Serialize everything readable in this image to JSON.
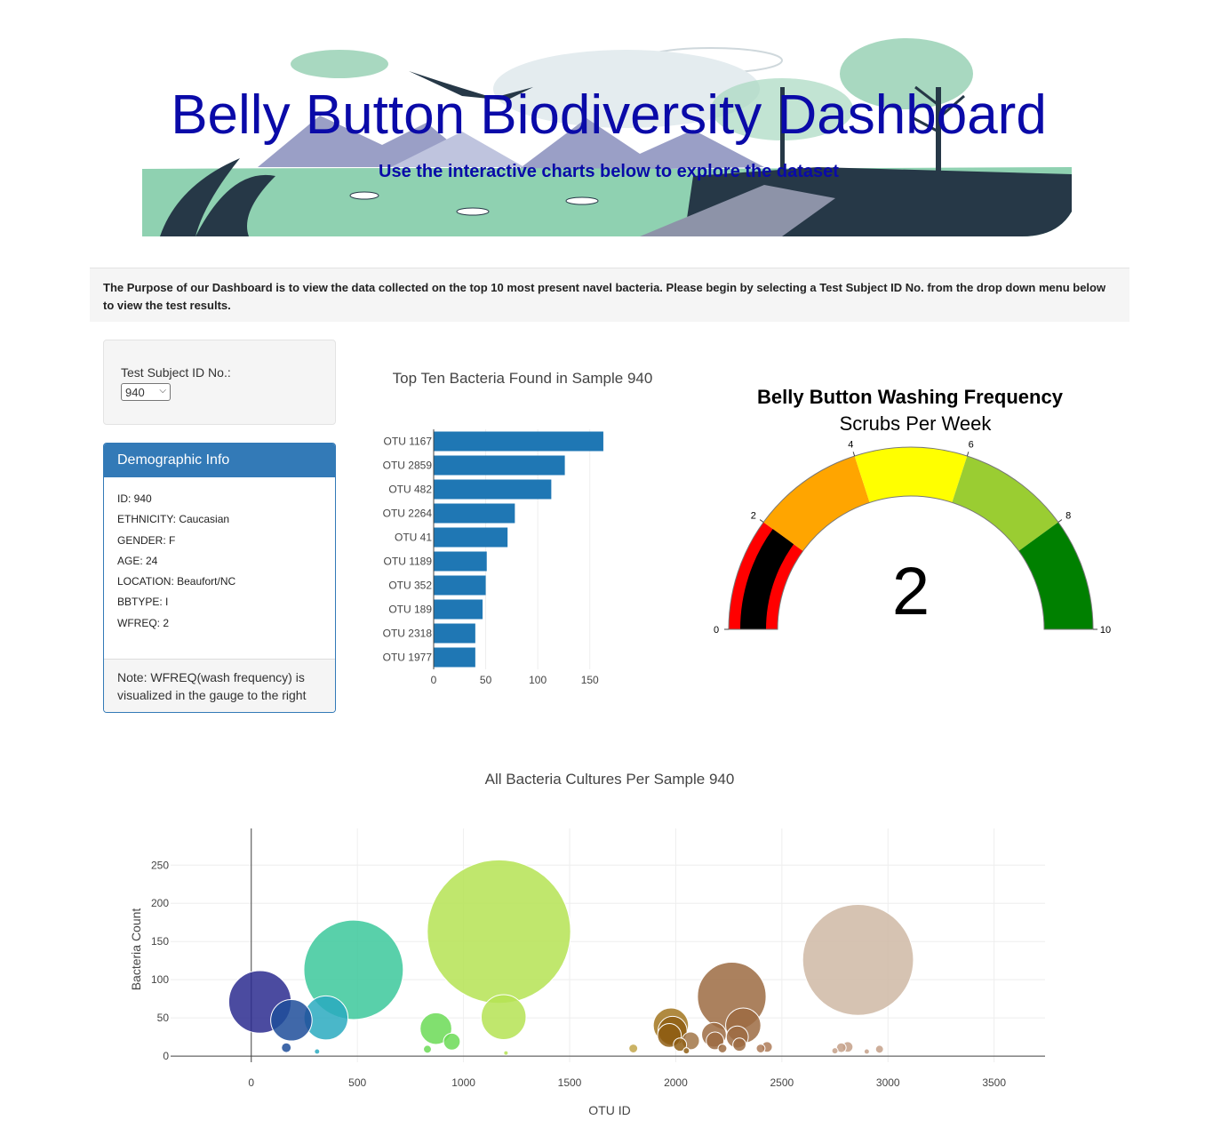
{
  "hero": {
    "title": "Belly Button Biodiversity Dashboard",
    "subtitle": "Use the interactive charts below to explore the dataset"
  },
  "purpose_text": "The Purpose of our Dashboard is to view the data collected on the top 10 most present navel bacteria. Please begin by selecting a Test Subject ID No. from the drop down menu below to view the test results.",
  "selector": {
    "label": "Test Subject ID No.:",
    "value": "940"
  },
  "demographics": {
    "heading": "Demographic Info",
    "rows": [
      "ID: 940",
      "ETHNICITY: Caucasian",
      "GENDER: F",
      "AGE: 24",
      "LOCATION: Beaufort/NC",
      "BBTYPE: I",
      "WFREQ: 2"
    ],
    "note": "Note: WFREQ(wash frequency) is visualized in the gauge to the right"
  },
  "chart_data": [
    {
      "type": "bar",
      "orientation": "horizontal",
      "title": "Top Ten Bacteria Found in Sample 940",
      "categories": [
        "OTU 1167",
        "OTU 2859",
        "OTU 482",
        "OTU 2264",
        "OTU 41",
        "OTU 1189",
        "OTU 352",
        "OTU 189",
        "OTU 2318",
        "OTU 1977"
      ],
      "values": [
        163,
        126,
        113,
        78,
        71,
        51,
        50,
        47,
        40,
        40
      ],
      "xlim": [
        0,
        175
      ],
      "xticks": [
        0,
        50,
        100,
        150
      ],
      "color": "#1f77b4"
    },
    {
      "type": "gauge",
      "title": "Belly Button Washing Frequency",
      "subtitle": "Scrubs Per Week",
      "value": 2,
      "range": [
        0,
        10
      ],
      "ticks": [
        0,
        2,
        4,
        6,
        8,
        10
      ],
      "bar_color": "#000000",
      "steps": [
        {
          "range": [
            0,
            2
          ],
          "color": "#ff0000"
        },
        {
          "range": [
            2,
            4
          ],
          "color": "#ffa500"
        },
        {
          "range": [
            4,
            6
          ],
          "color": "#ffff00"
        },
        {
          "range": [
            6,
            8
          ],
          "color": "#9acd32"
        },
        {
          "range": [
            8,
            10
          ],
          "color": "#008000"
        }
      ]
    },
    {
      "type": "scatter",
      "title": "All Bacteria Cultures Per Sample 940",
      "xlabel": "OTU ID",
      "ylabel": "Bacteria Count",
      "xlim": [
        -380,
        3740
      ],
      "ylim": [
        -8,
        298
      ],
      "xticks": [
        0,
        500,
        1000,
        1500,
        2000,
        2500,
        3000,
        3500
      ],
      "yticks": [
        0,
        50,
        100,
        150,
        200,
        250
      ],
      "grid": true,
      "points": [
        {
          "x": 41,
          "y": 71,
          "color": "#2c2b8f"
        },
        {
          "x": 189,
          "y": 47,
          "color": "#1f4e9a"
        },
        {
          "x": 165,
          "y": 11,
          "color": "#1f4e9a"
        },
        {
          "x": 352,
          "y": 50,
          "color": "#2aaabf"
        },
        {
          "x": 310,
          "y": 6,
          "color": "#2aaabf"
        },
        {
          "x": 482,
          "y": 113,
          "color": "#3cc89b"
        },
        {
          "x": 870,
          "y": 36,
          "color": "#6bdb56"
        },
        {
          "x": 945,
          "y": 19,
          "color": "#6bdb56"
        },
        {
          "x": 830,
          "y": 9,
          "color": "#6bdb56"
        },
        {
          "x": 1167,
          "y": 163,
          "color": "#b5e354"
        },
        {
          "x": 1189,
          "y": 51,
          "color": "#b5e354"
        },
        {
          "x": 1200,
          "y": 4,
          "color": "#b5e354"
        },
        {
          "x": 1800,
          "y": 10,
          "color": "#c2a64a"
        },
        {
          "x": 1977,
          "y": 40,
          "color": "#a2761f"
        },
        {
          "x": 1970,
          "y": 27,
          "color": "#8f5e14"
        },
        {
          "x": 1985,
          "y": 33,
          "color": "#8f5e14"
        },
        {
          "x": 2020,
          "y": 15,
          "color": "#8f5e14"
        },
        {
          "x": 2050,
          "y": 7,
          "color": "#8f5e14"
        },
        {
          "x": 2070,
          "y": 20,
          "color": "#a17647"
        },
        {
          "x": 2180,
          "y": 28,
          "color": "#9c6b42"
        },
        {
          "x": 2185,
          "y": 20,
          "color": "#9c6b42"
        },
        {
          "x": 2220,
          "y": 10,
          "color": "#9c6b42"
        },
        {
          "x": 2264,
          "y": 78,
          "color": "#9c6b42"
        },
        {
          "x": 2290,
          "y": 25,
          "color": "#9c6b42"
        },
        {
          "x": 2318,
          "y": 40,
          "color": "#9c6b42"
        },
        {
          "x": 2300,
          "y": 15,
          "color": "#9c6b42"
        },
        {
          "x": 2400,
          "y": 10,
          "color": "#ae7b58"
        },
        {
          "x": 2430,
          "y": 12,
          "color": "#ae7b58"
        },
        {
          "x": 2750,
          "y": 7,
          "color": "#c4a088"
        },
        {
          "x": 2780,
          "y": 11,
          "color": "#c4a088"
        },
        {
          "x": 2810,
          "y": 12,
          "color": "#c4a088"
        },
        {
          "x": 2859,
          "y": 126,
          "color": "#cfb8a5"
        },
        {
          "x": 2900,
          "y": 6,
          "color": "#c4a088"
        },
        {
          "x": 2960,
          "y": 9,
          "color": "#c4a088"
        }
      ]
    }
  ]
}
